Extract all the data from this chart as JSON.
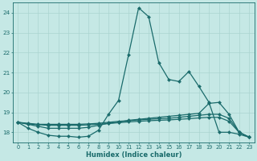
{
  "xlabel": "Humidex (Indice chaleur)",
  "x": [
    0,
    1,
    2,
    3,
    4,
    5,
    6,
    7,
    8,
    9,
    10,
    11,
    12,
    13,
    14,
    15,
    16,
    17,
    18,
    19,
    20,
    21,
    22,
    23
  ],
  "line_main": [
    18.5,
    18.2,
    18.0,
    17.85,
    17.8,
    17.8,
    17.75,
    17.8,
    18.1,
    18.9,
    19.6,
    21.9,
    24.25,
    23.8,
    21.5,
    20.65,
    20.55,
    21.05,
    20.3,
    19.5,
    18.0,
    18.0,
    17.9,
    17.75
  ],
  "line_b": [
    18.5,
    18.4,
    18.3,
    18.2,
    18.2,
    18.2,
    18.2,
    18.25,
    18.35,
    18.45,
    18.5,
    18.6,
    18.65,
    18.7,
    18.75,
    18.8,
    18.85,
    18.9,
    18.95,
    19.45,
    19.5,
    18.9,
    18.0,
    17.75
  ],
  "line_c": [
    18.5,
    18.45,
    18.4,
    18.4,
    18.4,
    18.4,
    18.4,
    18.42,
    18.45,
    18.5,
    18.55,
    18.58,
    18.62,
    18.65,
    18.68,
    18.7,
    18.75,
    18.8,
    18.85,
    18.9,
    18.9,
    18.7,
    18.0,
    17.75
  ],
  "line_d": [
    18.5,
    18.42,
    18.38,
    18.35,
    18.35,
    18.35,
    18.35,
    18.37,
    18.4,
    18.44,
    18.48,
    18.52,
    18.55,
    18.58,
    18.6,
    18.62,
    18.65,
    18.68,
    18.72,
    18.75,
    18.75,
    18.55,
    18.0,
    17.75
  ],
  "bg_color": "#c5e8e5",
  "line_color": "#1a6b6b",
  "grid_color": "#aad4d0",
  "ylim": [
    17.5,
    24.5
  ],
  "yticks": [
    18,
    19,
    20,
    21,
    22,
    23,
    24
  ],
  "marker_size": 2.2,
  "line_width": 0.9
}
